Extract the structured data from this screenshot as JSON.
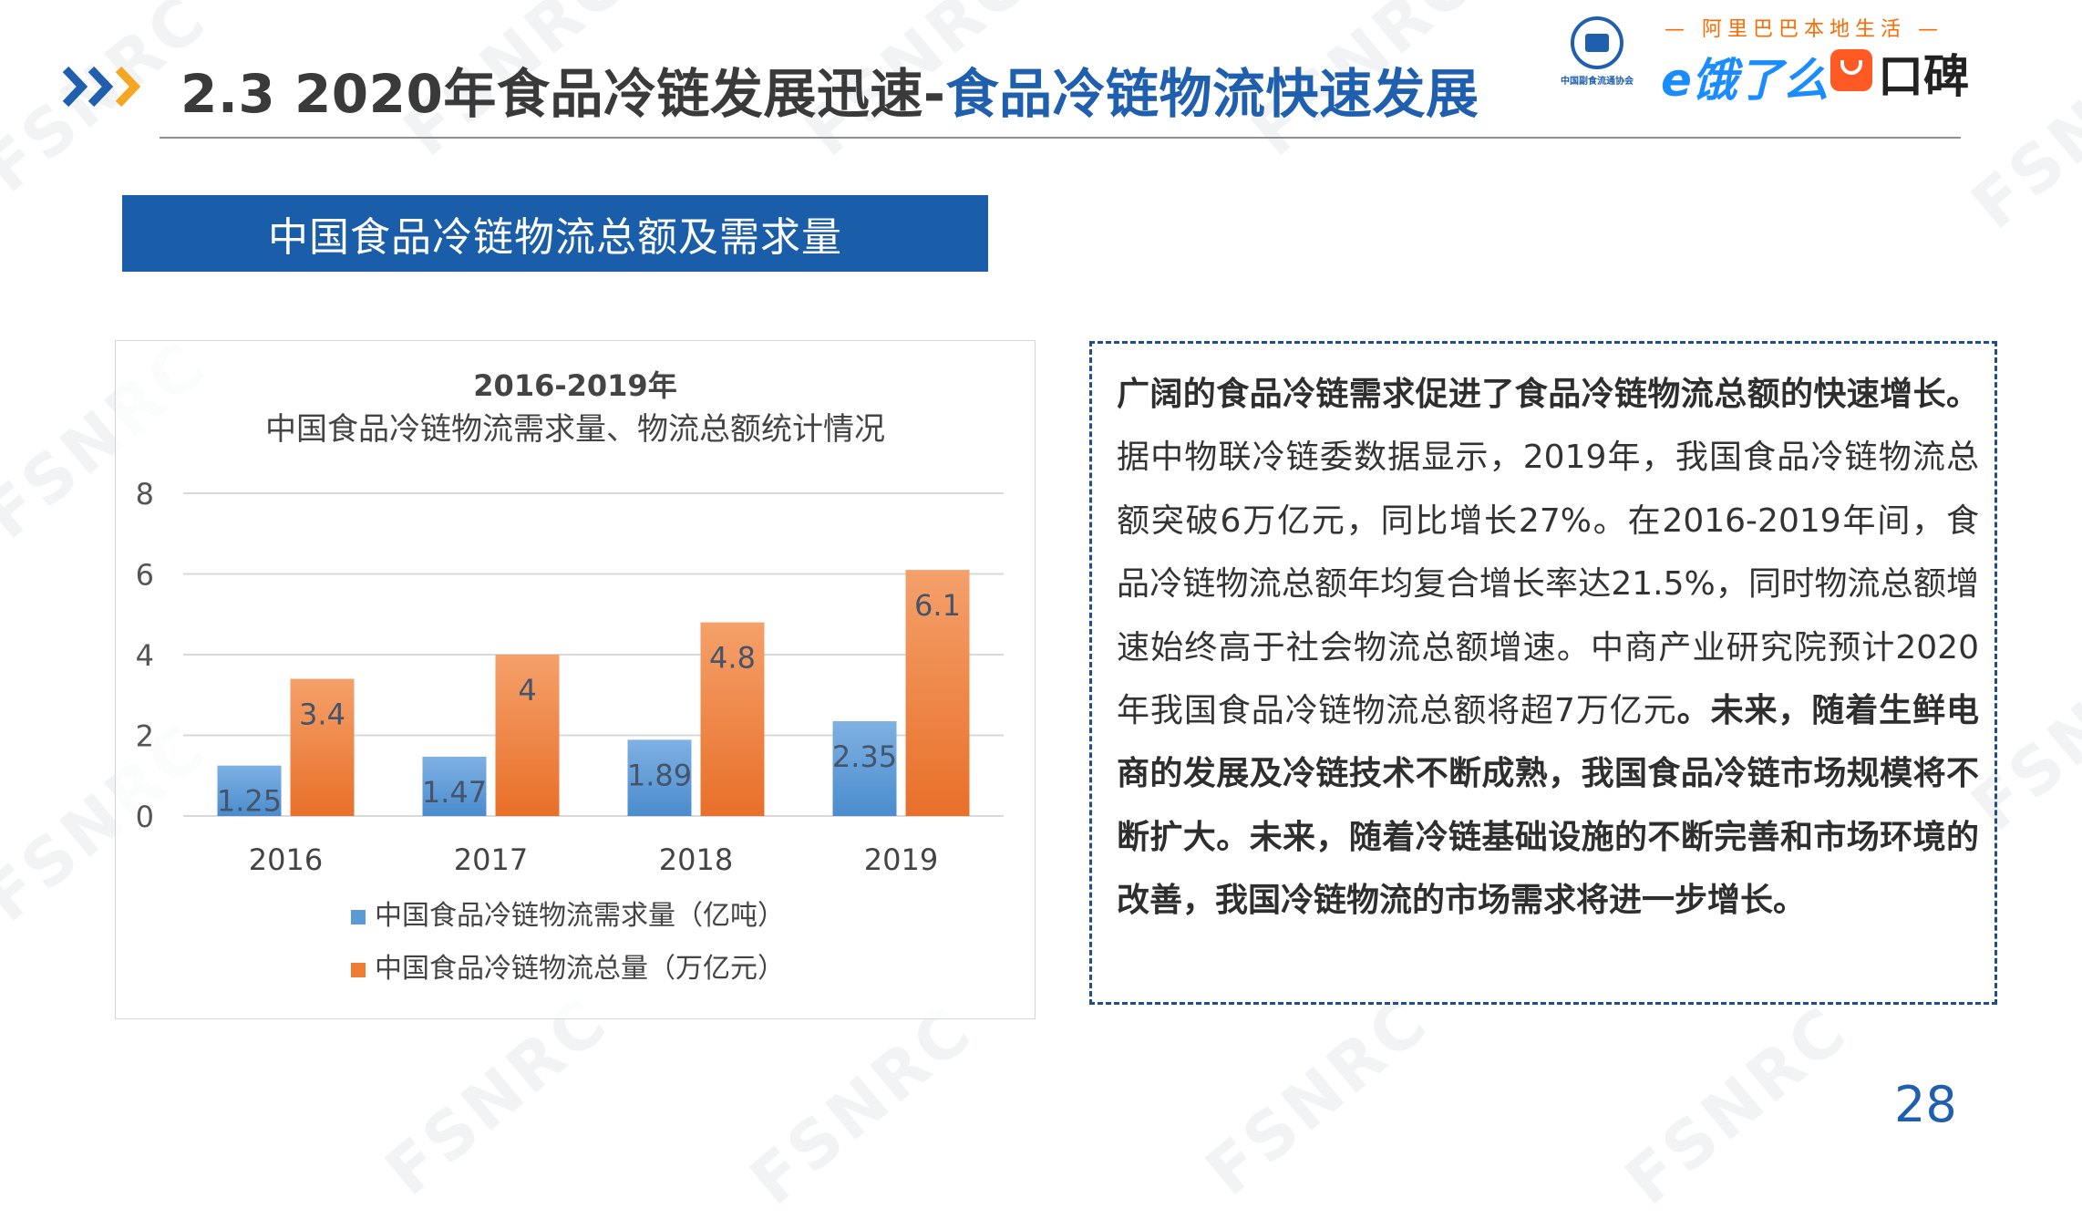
{
  "watermark": "FSNRC",
  "header": {
    "title_prefix": "2.3 2020年食品冷链发展迅速-",
    "title_highlight": "食品冷链物流快速发展",
    "logos": {
      "association_caption": "中国副食流通协会",
      "alibaba_tagline": "— 阿里巴巴本地生活 —",
      "eleme": "e饿了么",
      "koubei": "口碑"
    }
  },
  "section": {
    "banner": "中国食品冷链物流总额及需求量"
  },
  "colors": {
    "accent_blue": "#1f5fae",
    "banner_blue": "#1a5da8",
    "bar_blue": "#5b9bd5",
    "bar_orange": "#ed7d31"
  },
  "chart_data": {
    "type": "bar",
    "title_line1": "2016-2019年",
    "title_line2": "中国食品冷链物流需求量、物流总额统计情况",
    "categories": [
      "2016",
      "2017",
      "2018",
      "2019"
    ],
    "series": [
      {
        "name": "中国食品冷链物流需求量（亿吨）",
        "color": "#5b9bd5",
        "values": [
          1.25,
          1.47,
          1.89,
          2.35
        ],
        "labels": [
          "1.25",
          "1.47",
          "1.89",
          "2.35"
        ]
      },
      {
        "name": "中国食品冷链物流总量（万亿元）",
        "color": "#ed7d31",
        "values": [
          3.4,
          4,
          4.8,
          6.1
        ],
        "labels": [
          "3.4",
          "4",
          "4.8",
          "6.1"
        ]
      }
    ],
    "ylim": [
      0,
      8
    ],
    "yticks": [
      "0",
      "2",
      "4",
      "6",
      "8"
    ],
    "grid": true,
    "legend_position": "bottom"
  },
  "text_panel": {
    "lead_bold": "广阔的食品冷链需求促进了食品冷链物流总额的快速增长。",
    "body": "据中物联冷链委数据显示，2019年，我国食品冷链物流总额突破6万亿元，同比增长27%。在2016-2019年间，食品冷链物流总额年均复合增长率达21.5%，同时物流总额增速始终高于社会物流总额增速。中商产业研究院预计2020年我国食品冷链物流总额将超7万亿元",
    "tail_bold": "。未来，随着生鲜电商的发展及冷链技术不断成熟，我国食品冷链市场规模将不断扩大。未来，随着冷链基础设施的不断完善和市场环境的改善，我国冷链物流的市场需求将进一步增长。"
  },
  "page_number": "28"
}
